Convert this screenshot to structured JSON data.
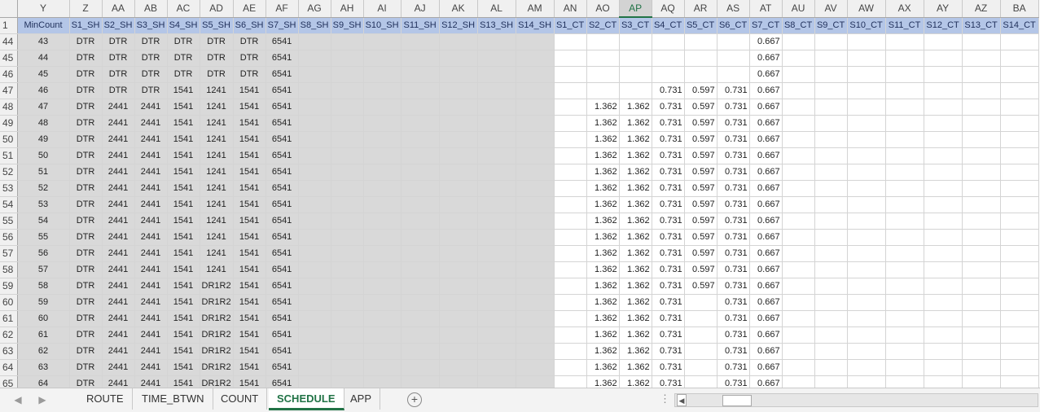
{
  "columns": [
    "Y",
    "Z",
    "AA",
    "AB",
    "AC",
    "AD",
    "AE",
    "AF",
    "AG",
    "AH",
    "AI",
    "AJ",
    "AK",
    "AL",
    "AM",
    "AN",
    "AO",
    "AP",
    "AQ",
    "AR",
    "AS",
    "AT",
    "AU",
    "AV",
    "AW",
    "AX",
    "AY",
    "AZ",
    "BA"
  ],
  "selected_column": "AP",
  "header_row": {
    "row_number": "1",
    "cells": [
      "MinCount",
      "S1_SH",
      "S2_SH",
      "S3_SH",
      "S4_SH",
      "S5_SH",
      "S6_SH",
      "S7_SH",
      "S8_SH",
      "S9_SH",
      "S10_SH",
      "S11_SH",
      "S12_SH",
      "S13_SH",
      "S14_SH",
      "S1_CT",
      "S2_CT",
      "S3_CT",
      "S4_CT",
      "S5_CT",
      "S6_CT",
      "S7_CT",
      "S8_CT",
      "S9_CT",
      "S10_CT",
      "S11_CT",
      "S12_CT",
      "S13_CT",
      "S14_CT"
    ]
  },
  "rows": [
    {
      "n": "44",
      "cells": [
        "43",
        "DTR",
        "DTR",
        "DTR",
        "DTR",
        "DTR",
        "DTR",
        "6541",
        "",
        "",
        "",
        "",
        "",
        "",
        "",
        "",
        "",
        "",
        "",
        "",
        "",
        "0.667",
        "",
        "",
        "",
        "",
        "",
        "",
        ""
      ]
    },
    {
      "n": "45",
      "cells": [
        "44",
        "DTR",
        "DTR",
        "DTR",
        "DTR",
        "DTR",
        "DTR",
        "6541",
        "",
        "",
        "",
        "",
        "",
        "",
        "",
        "",
        "",
        "",
        "",
        "",
        "",
        "0.667",
        "",
        "",
        "",
        "",
        "",
        "",
        ""
      ]
    },
    {
      "n": "46",
      "cells": [
        "45",
        "DTR",
        "DTR",
        "DTR",
        "DTR",
        "DTR",
        "DTR",
        "6541",
        "",
        "",
        "",
        "",
        "",
        "",
        "",
        "",
        "",
        "",
        "",
        "",
        "",
        "0.667",
        "",
        "",
        "",
        "",
        "",
        "",
        ""
      ]
    },
    {
      "n": "47",
      "cells": [
        "46",
        "DTR",
        "DTR",
        "DTR",
        "1541",
        "1241",
        "1541",
        "6541",
        "",
        "",
        "",
        "",
        "",
        "",
        "",
        "",
        "",
        "",
        "0.731",
        "0.597",
        "0.731",
        "0.667",
        "",
        "",
        "",
        "",
        "",
        "",
        ""
      ]
    },
    {
      "n": "48",
      "cells": [
        "47",
        "DTR",
        "2441",
        "2441",
        "1541",
        "1241",
        "1541",
        "6541",
        "",
        "",
        "",
        "",
        "",
        "",
        "",
        "",
        "1.362",
        "1.362",
        "0.731",
        "0.597",
        "0.731",
        "0.667",
        "",
        "",
        "",
        "",
        "",
        "",
        ""
      ]
    },
    {
      "n": "49",
      "cells": [
        "48",
        "DTR",
        "2441",
        "2441",
        "1541",
        "1241",
        "1541",
        "6541",
        "",
        "",
        "",
        "",
        "",
        "",
        "",
        "",
        "1.362",
        "1.362",
        "0.731",
        "0.597",
        "0.731",
        "0.667",
        "",
        "",
        "",
        "",
        "",
        "",
        ""
      ]
    },
    {
      "n": "50",
      "cells": [
        "49",
        "DTR",
        "2441",
        "2441",
        "1541",
        "1241",
        "1541",
        "6541",
        "",
        "",
        "",
        "",
        "",
        "",
        "",
        "",
        "1.362",
        "1.362",
        "0.731",
        "0.597",
        "0.731",
        "0.667",
        "",
        "",
        "",
        "",
        "",
        "",
        ""
      ]
    },
    {
      "n": "51",
      "cells": [
        "50",
        "DTR",
        "2441",
        "2441",
        "1541",
        "1241",
        "1541",
        "6541",
        "",
        "",
        "",
        "",
        "",
        "",
        "",
        "",
        "1.362",
        "1.362",
        "0.731",
        "0.597",
        "0.731",
        "0.667",
        "",
        "",
        "",
        "",
        "",
        "",
        ""
      ]
    },
    {
      "n": "52",
      "cells": [
        "51",
        "DTR",
        "2441",
        "2441",
        "1541",
        "1241",
        "1541",
        "6541",
        "",
        "",
        "",
        "",
        "",
        "",
        "",
        "",
        "1.362",
        "1.362",
        "0.731",
        "0.597",
        "0.731",
        "0.667",
        "",
        "",
        "",
        "",
        "",
        "",
        ""
      ]
    },
    {
      "n": "53",
      "cells": [
        "52",
        "DTR",
        "2441",
        "2441",
        "1541",
        "1241",
        "1541",
        "6541",
        "",
        "",
        "",
        "",
        "",
        "",
        "",
        "",
        "1.362",
        "1.362",
        "0.731",
        "0.597",
        "0.731",
        "0.667",
        "",
        "",
        "",
        "",
        "",
        "",
        ""
      ]
    },
    {
      "n": "54",
      "cells": [
        "53",
        "DTR",
        "2441",
        "2441",
        "1541",
        "1241",
        "1541",
        "6541",
        "",
        "",
        "",
        "",
        "",
        "",
        "",
        "",
        "1.362",
        "1.362",
        "0.731",
        "0.597",
        "0.731",
        "0.667",
        "",
        "",
        "",
        "",
        "",
        "",
        ""
      ]
    },
    {
      "n": "55",
      "cells": [
        "54",
        "DTR",
        "2441",
        "2441",
        "1541",
        "1241",
        "1541",
        "6541",
        "",
        "",
        "",
        "",
        "",
        "",
        "",
        "",
        "1.362",
        "1.362",
        "0.731",
        "0.597",
        "0.731",
        "0.667",
        "",
        "",
        "",
        "",
        "",
        "",
        ""
      ]
    },
    {
      "n": "56",
      "cells": [
        "55",
        "DTR",
        "2441",
        "2441",
        "1541",
        "1241",
        "1541",
        "6541",
        "",
        "",
        "",
        "",
        "",
        "",
        "",
        "",
        "1.362",
        "1.362",
        "0.731",
        "0.597",
        "0.731",
        "0.667",
        "",
        "",
        "",
        "",
        "",
        "",
        ""
      ]
    },
    {
      "n": "57",
      "cells": [
        "56",
        "DTR",
        "2441",
        "2441",
        "1541",
        "1241",
        "1541",
        "6541",
        "",
        "",
        "",
        "",
        "",
        "",
        "",
        "",
        "1.362",
        "1.362",
        "0.731",
        "0.597",
        "0.731",
        "0.667",
        "",
        "",
        "",
        "",
        "",
        "",
        ""
      ]
    },
    {
      "n": "58",
      "cells": [
        "57",
        "DTR",
        "2441",
        "2441",
        "1541",
        "1241",
        "1541",
        "6541",
        "",
        "",
        "",
        "",
        "",
        "",
        "",
        "",
        "1.362",
        "1.362",
        "0.731",
        "0.597",
        "0.731",
        "0.667",
        "",
        "",
        "",
        "",
        "",
        "",
        ""
      ]
    },
    {
      "n": "59",
      "cells": [
        "58",
        "DTR",
        "2441",
        "2441",
        "1541",
        "DR1R2",
        "1541",
        "6541",
        "",
        "",
        "",
        "",
        "",
        "",
        "",
        "",
        "1.362",
        "1.362",
        "0.731",
        "0.597",
        "0.731",
        "0.667",
        "",
        "",
        "",
        "",
        "",
        "",
        ""
      ]
    },
    {
      "n": "60",
      "cells": [
        "59",
        "DTR",
        "2441",
        "2441",
        "1541",
        "DR1R2",
        "1541",
        "6541",
        "",
        "",
        "",
        "",
        "",
        "",
        "",
        "",
        "1.362",
        "1.362",
        "0.731",
        "",
        "0.731",
        "0.667",
        "",
        "",
        "",
        "",
        "",
        "",
        ""
      ]
    },
    {
      "n": "61",
      "cells": [
        "60",
        "DTR",
        "2441",
        "2441",
        "1541",
        "DR1R2",
        "1541",
        "6541",
        "",
        "",
        "",
        "",
        "",
        "",
        "",
        "",
        "1.362",
        "1.362",
        "0.731",
        "",
        "0.731",
        "0.667",
        "",
        "",
        "",
        "",
        "",
        "",
        ""
      ]
    },
    {
      "n": "62",
      "cells": [
        "61",
        "DTR",
        "2441",
        "2441",
        "1541",
        "DR1R2",
        "1541",
        "6541",
        "",
        "",
        "",
        "",
        "",
        "",
        "",
        "",
        "1.362",
        "1.362",
        "0.731",
        "",
        "0.731",
        "0.667",
        "",
        "",
        "",
        "",
        "",
        "",
        ""
      ]
    },
    {
      "n": "63",
      "cells": [
        "62",
        "DTR",
        "2441",
        "2441",
        "1541",
        "DR1R2",
        "1541",
        "6541",
        "",
        "",
        "",
        "",
        "",
        "",
        "",
        "",
        "1.362",
        "1.362",
        "0.731",
        "",
        "0.731",
        "0.667",
        "",
        "",
        "",
        "",
        "",
        "",
        ""
      ]
    },
    {
      "n": "64",
      "cells": [
        "63",
        "DTR",
        "2441",
        "2441",
        "1541",
        "DR1R2",
        "1541",
        "6541",
        "",
        "",
        "",
        "",
        "",
        "",
        "",
        "",
        "1.362",
        "1.362",
        "0.731",
        "",
        "0.731",
        "0.667",
        "",
        "",
        "",
        "",
        "",
        "",
        ""
      ]
    },
    {
      "n": "65",
      "cells": [
        "64",
        "DTR",
        "2441",
        "2441",
        "1541",
        "DR1R2",
        "1541",
        "6541",
        "",
        "",
        "",
        "",
        "",
        "",
        "",
        "",
        "1.362",
        "1.362",
        "0.731",
        "",
        "0.731",
        "0.667",
        "",
        "",
        "",
        "",
        "",
        "",
        ""
      ]
    }
  ],
  "sheet_tabs": [
    {
      "label": "ROUTE",
      "active": false
    },
    {
      "label": "TIME_BTWN",
      "active": false
    },
    {
      "label": "COUNT",
      "active": false
    },
    {
      "label": "SCHEDULE",
      "active": true
    },
    {
      "label": "APP",
      "active": false
    }
  ],
  "icons": {
    "prev_sheet": "chevron-left-icon",
    "next_sheet": "chevron-right-icon",
    "add_sheet": "plus-circle-icon",
    "scroll_left": "chevron-left-icon"
  },
  "colors": {
    "accent": "#217346",
    "header_fill": "#b4c6e7",
    "gray_fill": "#d9d9d9"
  }
}
